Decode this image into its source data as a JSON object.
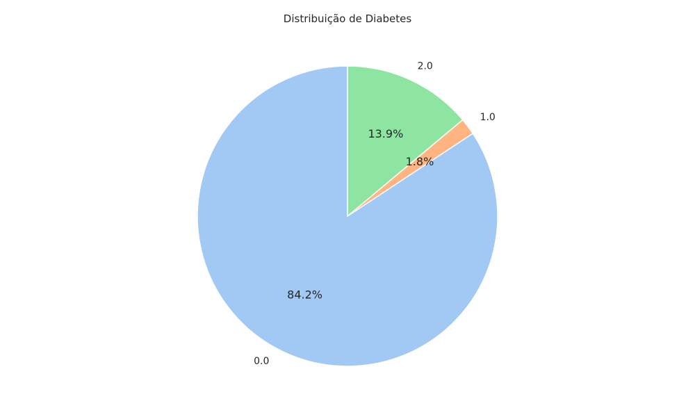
{
  "chart_data": {
    "type": "pie",
    "title": "Distribuição de Diabetes",
    "categories": [
      "0.0",
      "1.0",
      "2.0"
    ],
    "values": [
      84.2,
      1.8,
      13.9
    ],
    "value_labels": [
      "84.2%",
      "1.8%",
      "13.9%"
    ],
    "colors": [
      "#a1c9f4",
      "#ffb482",
      "#8de5a1"
    ],
    "start_angle_deg": 90,
    "direction": "counterclockwise",
    "edge_color": "#ffffff"
  }
}
